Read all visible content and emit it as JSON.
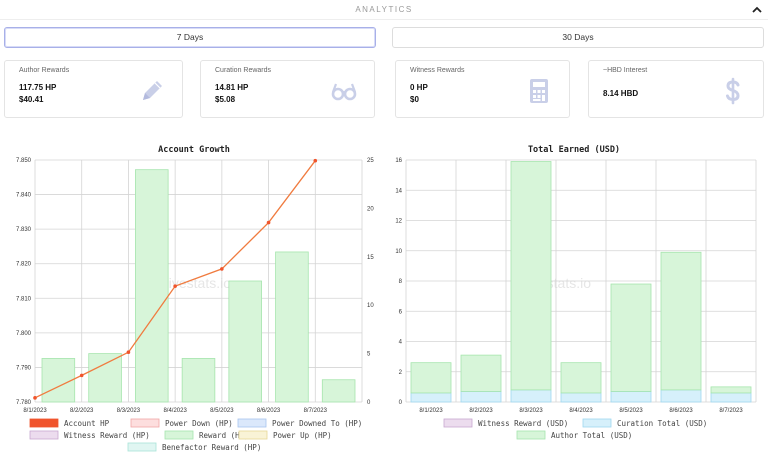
{
  "header": {
    "title": "ANALYTICS",
    "collapse_icon": "chevron-up-icon"
  },
  "periods": {
    "seven": "7 Days",
    "thirty": "30 Days",
    "active": "7 Days"
  },
  "cards": [
    {
      "title": "Author Rewards",
      "line1": "117.75 HP",
      "line2": "$40.41",
      "icon": "pencil-icon"
    },
    {
      "title": "Curation Rewards",
      "line1": "14.81 HP",
      "line2": "$5.08",
      "icon": "glasses-icon"
    },
    {
      "title": "Witness Rewards",
      "line1": "0 HP",
      "line2": "$0",
      "icon": "calculator-icon"
    },
    {
      "title": "~HBD Interest",
      "line1": "8.14 HBD",
      "line2": "",
      "icon": "dollar-icon"
    }
  ],
  "colors": {
    "account_hp": "#f0542c",
    "line": "#f07b3f",
    "reward_fill": "#d7f5d9",
    "reward_stroke": "#a6e5ad",
    "curation_fill": "#d6f0fb",
    "curation_stroke": "#9fd8f0",
    "power_down_fill": "#fddede",
    "power_down_stroke": "#f1a6a6",
    "power_downed_fill": "#dbe8fb",
    "power_downed_stroke": "#a7c4ef",
    "witness_fill": "#ecdcee",
    "witness_stroke": "#c8a8cf",
    "power_up_fill": "#f9f3d6",
    "power_up_stroke": "#e6d797",
    "benefactor_fill": "#e0f6f2",
    "benefactor_stroke": "#a9e3d7"
  },
  "chart_data": [
    {
      "type": "bar",
      "title": "Account Growth",
      "watermark": "hivestats.io",
      "categories": [
        "8/1/2023",
        "8/2/2023",
        "8/3/2023",
        "8/4/2023",
        "8/5/2023",
        "8/6/2023",
        "8/7/2023"
      ],
      "y_left": {
        "ylim": [
          7.78,
          7.85
        ],
        "ticks": [
          "7.850",
          "7.840",
          "7.830",
          "7.820",
          "7.810",
          "7.800",
          "7.790",
          "7.780"
        ]
      },
      "y_right": {
        "ylim": [
          0,
          25
        ],
        "ticks": [
          "25",
          "20",
          "15",
          "10",
          "5",
          "0"
        ]
      },
      "series": [
        {
          "name": "Account HP",
          "axis": "left",
          "type": "line",
          "values": [
            7.7812,
            7.7877,
            7.7944,
            7.8135,
            7.8185,
            7.8319,
            7.8498
          ]
        },
        {
          "name": "Reward (HP)",
          "axis": "right",
          "type": "bar",
          "values": [
            4.5,
            5.0,
            24.0,
            4.5,
            12.5,
            15.5,
            2.3
          ]
        }
      ],
      "legend": [
        "Account HP",
        "Power Down (HP)",
        "Power Downed To (HP)",
        "Witness Reward (HP)",
        "Reward (HP)",
        "Power Up (HP)",
        "Benefactor Reward (HP)"
      ],
      "legend_placement": "bottom",
      "grid": true
    },
    {
      "type": "bar",
      "title": "Total Earned (USD)",
      "watermark": "hivestats.io",
      "categories": [
        "8/1/2023",
        "8/2/2023",
        "8/3/2023",
        "8/4/2023",
        "8/5/2023",
        "8/6/2023",
        "8/7/2023"
      ],
      "ylim": [
        0,
        16
      ],
      "ticks": [
        "16",
        "14",
        "12",
        "10",
        "8",
        "6",
        "4",
        "2",
        "0"
      ],
      "stacked": true,
      "series": [
        {
          "name": "Curation Total (USD)",
          "values": [
            0.6,
            0.7,
            0.8,
            0.6,
            0.7,
            0.8,
            0.6
          ]
        },
        {
          "name": "Author Total (USD)",
          "values": [
            2.0,
            2.4,
            15.1,
            2.0,
            7.1,
            9.1,
            0.4
          ]
        }
      ],
      "legend": [
        "Witness Reward (USD)",
        "Curation Total (USD)",
        "Author Total (USD)"
      ],
      "legend_placement": "bottom",
      "grid": true
    }
  ]
}
